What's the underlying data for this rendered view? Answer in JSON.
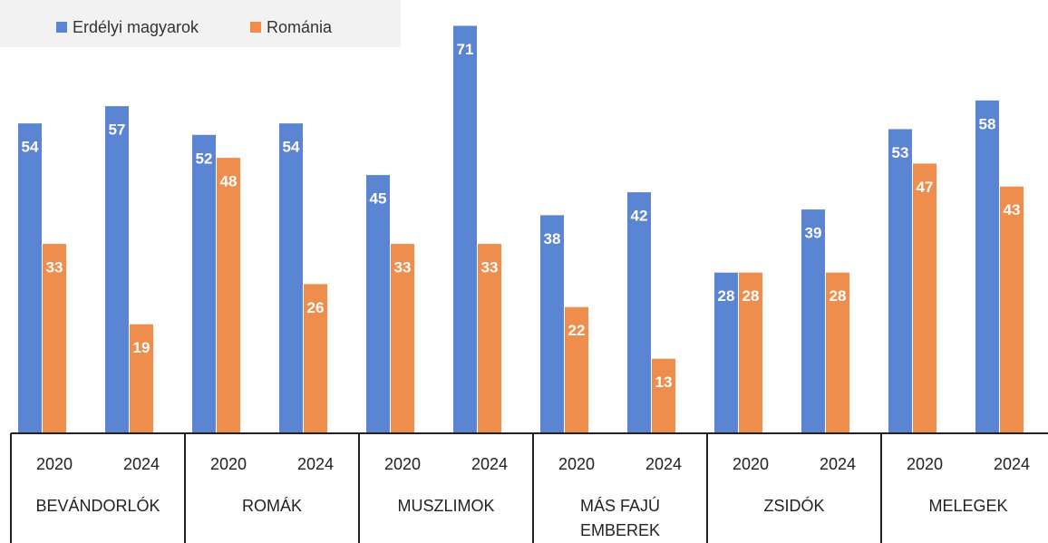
{
  "chart_data": {
    "type": "bar",
    "groups": [
      "BEVÁNDORLÓK",
      "ROMÁK",
      "MUSZLIMOK",
      "MÁS FAJÚ EMBEREK",
      "ZSIDÓK",
      "MELEGEK"
    ],
    "categories": [
      "2020",
      "2024",
      "2020",
      "2024",
      "2020",
      "2024",
      "2020",
      "2024",
      "2020",
      "2024",
      "2020",
      "2024"
    ],
    "series": [
      {
        "name": "Erdélyi magyarok",
        "color": "#5b84d2",
        "values": [
          54,
          57,
          52,
          54,
          45,
          71,
          38,
          42,
          28,
          39,
          53,
          58
        ]
      },
      {
        "name": "Románia",
        "color": "#ee8d4c",
        "values": [
          33,
          19,
          48,
          26,
          33,
          33,
          22,
          13,
          28,
          28,
          47,
          43
        ]
      }
    ],
    "ylim": [
      0,
      75.5
    ]
  }
}
